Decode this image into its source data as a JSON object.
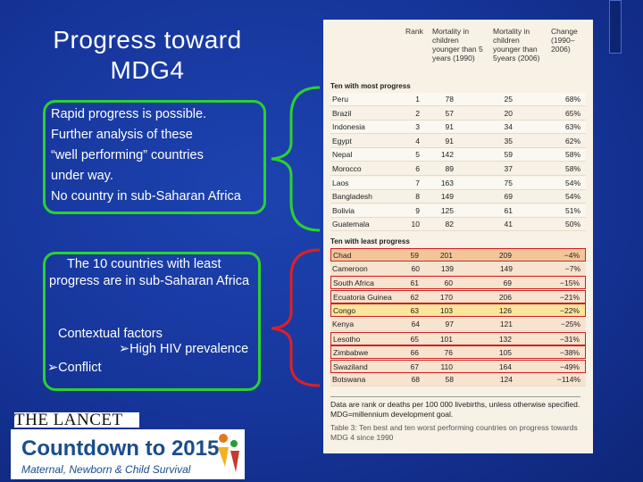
{
  "title": "Progress toward MDG4",
  "box1": {
    "lines": [
      "Rapid progress is possible.",
      "Further analysis of these",
      "“well performing” countries",
      "under way.",
      "No country in sub-Saharan Africa"
    ]
  },
  "box2": {
    "text": "The 10 countries with least progress are in sub-Saharan Africa",
    "factors_title": "Contextual factors",
    "factors": [
      "High HIV prevalence",
      "Conflict"
    ]
  },
  "table": {
    "headers": [
      "Rank",
      "Mortality in children younger than 5 years (1990)",
      "Mortality in children younger than 5years (2006)",
      "Change (1990–2006)"
    ],
    "sections": [
      {
        "title": "Ten with most progress",
        "rows": [
          [
            "Peru",
            "1",
            "78",
            "25",
            "68%"
          ],
          [
            "Brazil",
            "2",
            "57",
            "20",
            "65%"
          ],
          [
            "Indonesia",
            "3",
            "91",
            "34",
            "63%"
          ],
          [
            "Egypt",
            "4",
            "91",
            "35",
            "62%"
          ],
          [
            "Nepal",
            "5",
            "142",
            "59",
            "58%"
          ],
          [
            "Morocco",
            "6",
            "89",
            "37",
            "58%"
          ],
          [
            "Laos",
            "7",
            "163",
            "75",
            "54%"
          ],
          [
            "Bangladesh",
            "8",
            "149",
            "69",
            "54%"
          ],
          [
            "Bolivia",
            "9",
            "125",
            "61",
            "51%"
          ],
          [
            "Guatemala",
            "10",
            "82",
            "41",
            "50%"
          ]
        ]
      },
      {
        "title": "Ten with least progress",
        "rows": [
          [
            "Chad",
            "59",
            "201",
            "209",
            "−4%"
          ],
          [
            "Cameroon",
            "60",
            "139",
            "149",
            "−7%"
          ],
          [
            "South Africa",
            "61",
            "60",
            "69",
            "−15%"
          ],
          [
            "Ecuatoria Guinea",
            "62",
            "170",
            "206",
            "−21%"
          ],
          [
            "Congo",
            "63",
            "103",
            "126",
            "−22%"
          ],
          [
            "Kenya",
            "64",
            "97",
            "121",
            "−25%"
          ],
          [
            "Lesotho",
            "65",
            "101",
            "132",
            "−31%"
          ],
          [
            "Zimbabwe",
            "66",
            "76",
            "105",
            "−38%"
          ],
          [
            "Swaziland",
            "67",
            "110",
            "164",
            "−49%"
          ],
          [
            "Botswana",
            "68",
            "58",
            "124",
            "−114%"
          ]
        ]
      }
    ],
    "footnote": "Data are rank or deaths per 100 000 livebirths, unless otherwise specified. MDG=millennium development goal.",
    "caption": "Table 3: Ten best and ten worst performing countries on progress towards MDG 4 since 1990"
  },
  "logos": {
    "lancet": "THE LANCET",
    "countdown": "Countdown to 2015",
    "countdown_sub": "Maternal, Newborn & Child Survival"
  }
}
